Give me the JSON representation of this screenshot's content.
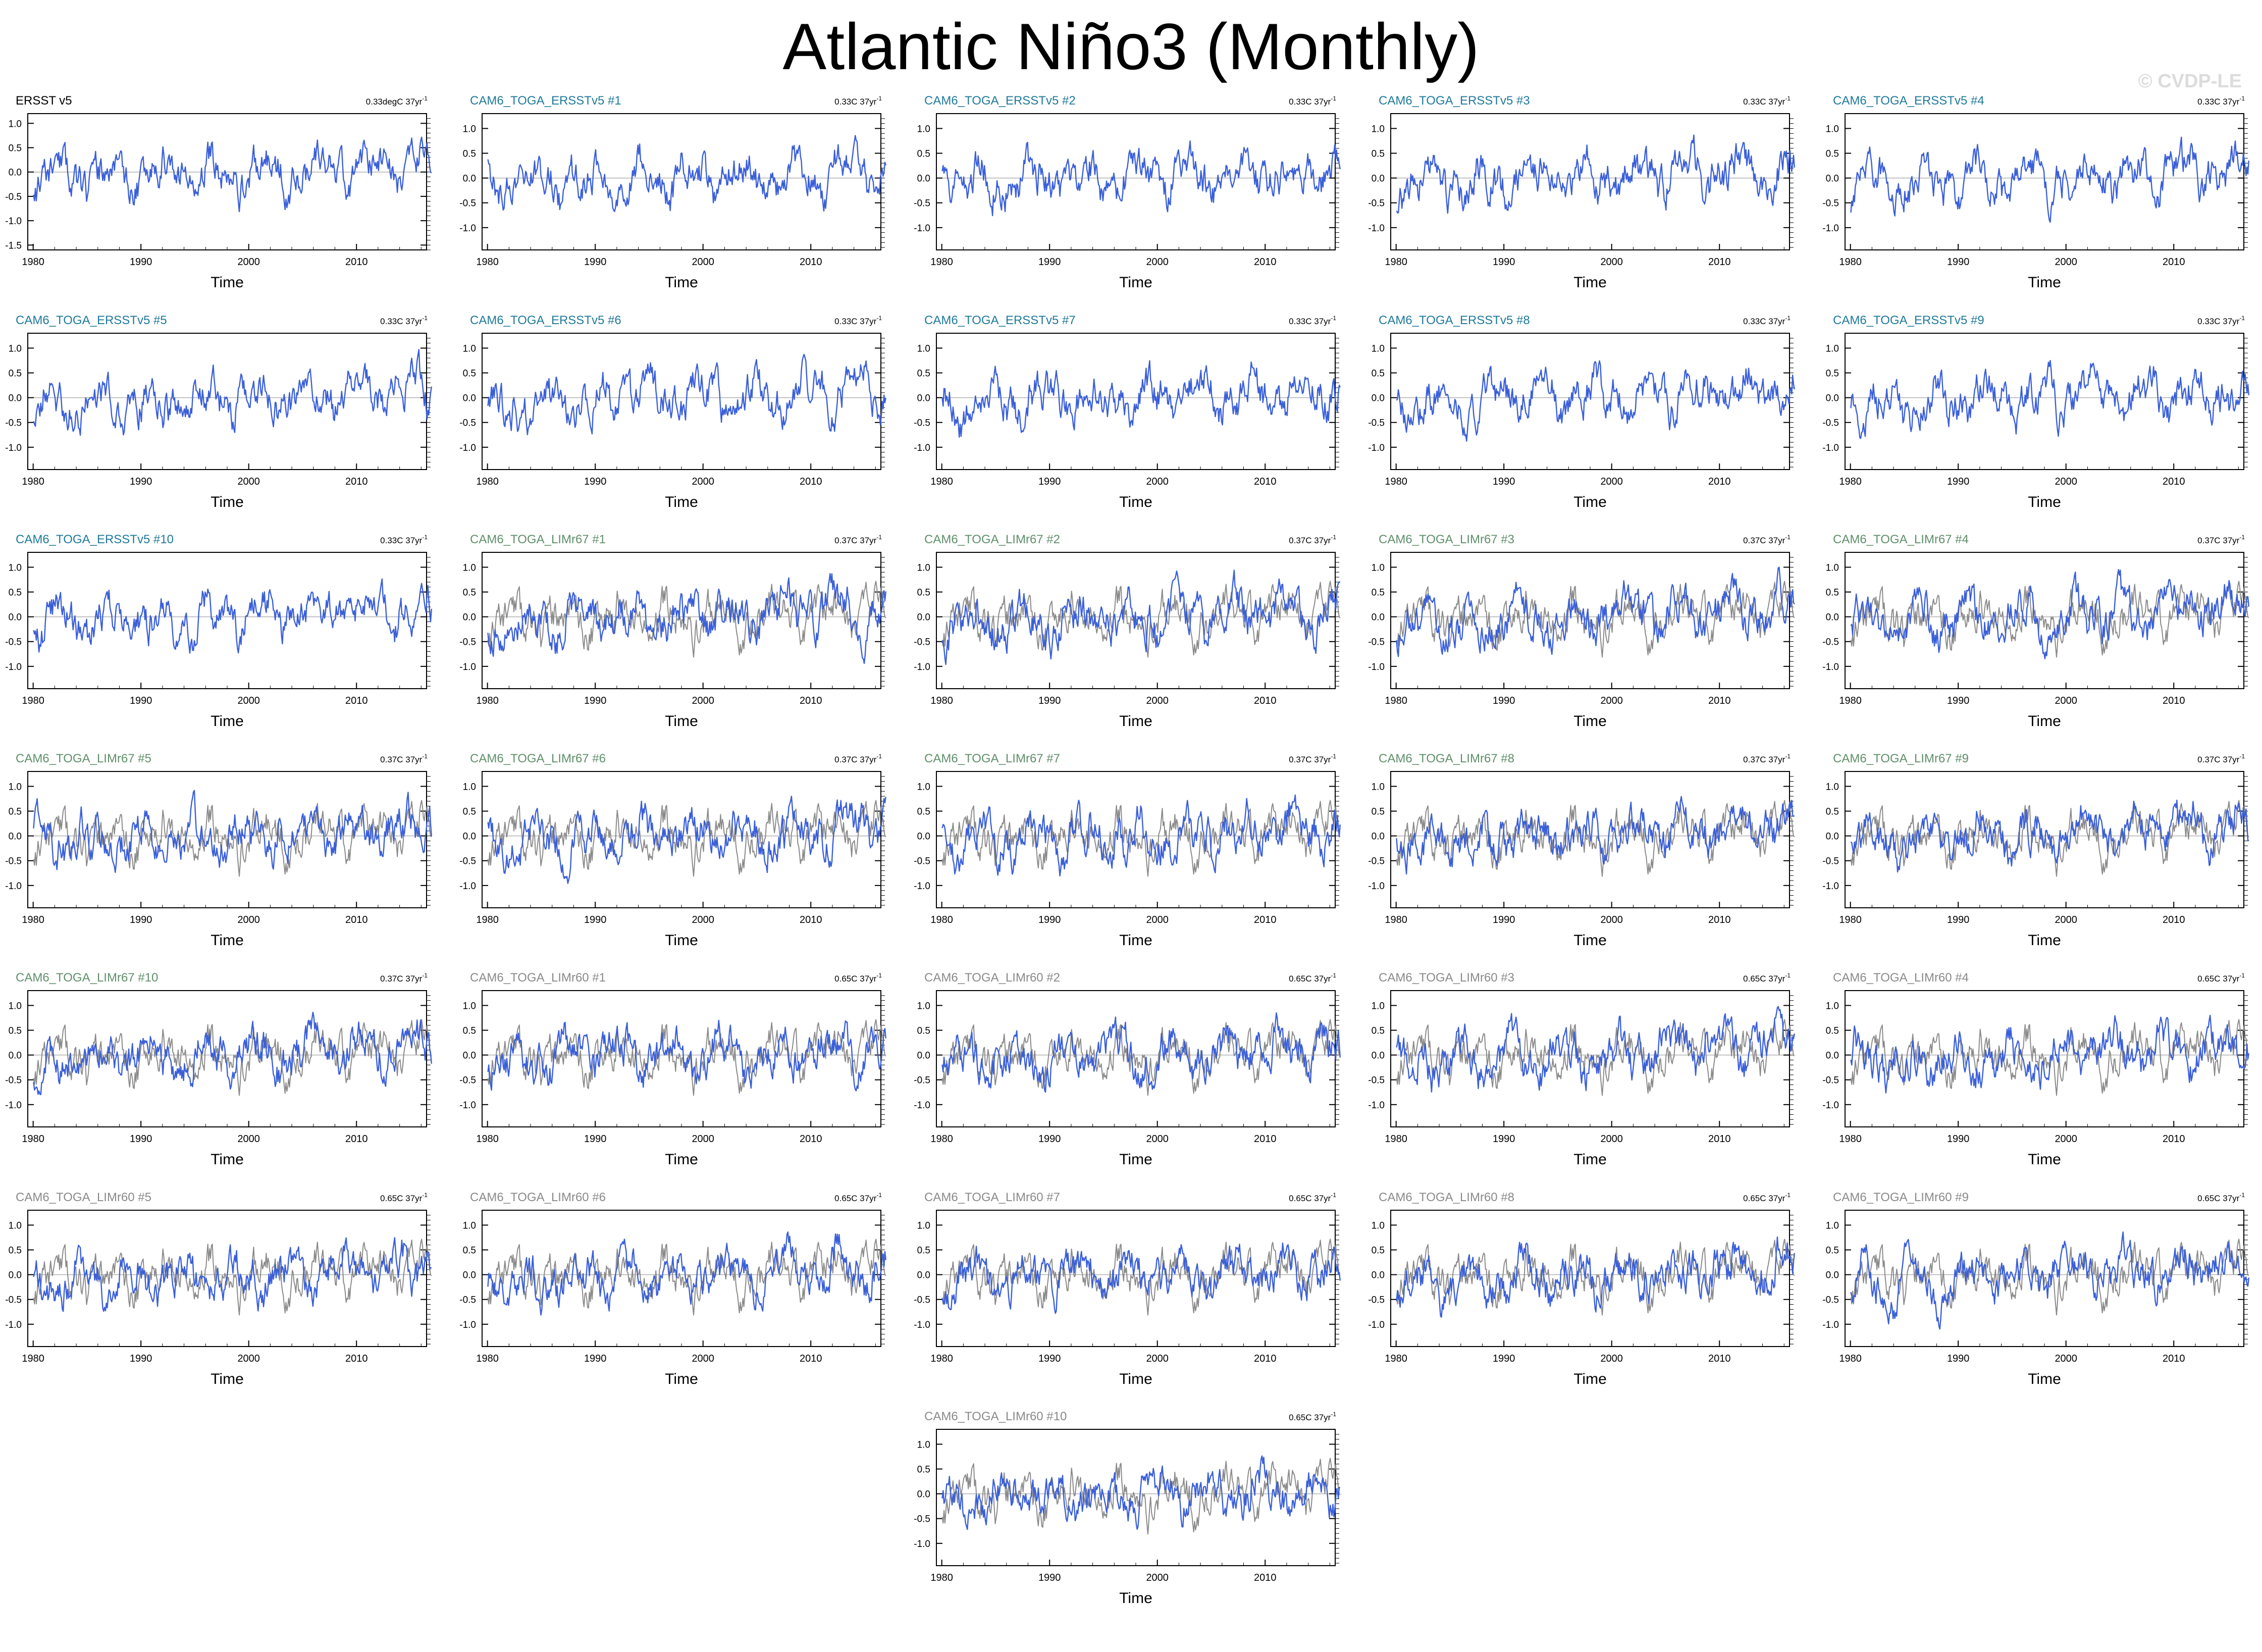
{
  "title": "Atlantic Niño3 (Monthly)",
  "watermark": "© CVDP-LE",
  "colors": {
    "ensemble_line": "#3a5fd9",
    "observation_line": "#8a8a8a",
    "title_ersst": "#000000",
    "title_toga_ersst": "#1f7a9a",
    "title_lim67": "#5f8f6a",
    "title_lim60": "#8a8a8a"
  },
  "chart_data": {
    "type": "line",
    "xlabel": "Time",
    "xlim": [
      1979.5,
      2016.5
    ],
    "xticks": [
      1980,
      1990,
      2000,
      2010
    ],
    "reference_line_y": 0,
    "panels": [
      {
        "name": "ERSST v5",
        "trend": "0.33degC 37yr",
        "trend_exponent": "-1",
        "group": "ersst",
        "ylim": [
          -1.6,
          1.2
        ],
        "yticks": [
          "1.0",
          "0.5",
          "0.0",
          "-0.5",
          "-1.0",
          "-1.5"
        ],
        "seed": 11,
        "overlay": false
      },
      {
        "name": "CAM6_TOGA_ERSSTv5 #1",
        "trend": "0.33C 37yr",
        "trend_exponent": "-1",
        "group": "toga_ersst",
        "ylim": [
          -1.45,
          1.3
        ],
        "yticks": [
          "1.0",
          "0.5",
          "0.0",
          "-0.5",
          "-1.0"
        ],
        "seed": 21,
        "overlay": false
      },
      {
        "name": "CAM6_TOGA_ERSSTv5 #2",
        "trend": "0.33C 37yr",
        "trend_exponent": "-1",
        "group": "toga_ersst",
        "ylim": [
          -1.45,
          1.3
        ],
        "yticks": [
          "1.0",
          "0.5",
          "0.0",
          "-0.5",
          "-1.0"
        ],
        "seed": 22,
        "overlay": false
      },
      {
        "name": "CAM6_TOGA_ERSSTv5 #3",
        "trend": "0.33C 37yr",
        "trend_exponent": "-1",
        "group": "toga_ersst",
        "ylim": [
          -1.45,
          1.3
        ],
        "yticks": [
          "1.0",
          "0.5",
          "0.0",
          "-0.5",
          "-1.0"
        ],
        "seed": 23,
        "overlay": false
      },
      {
        "name": "CAM6_TOGA_ERSSTv5 #4",
        "trend": "0.33C 37yr",
        "trend_exponent": "-1",
        "group": "toga_ersst",
        "ylim": [
          -1.45,
          1.3
        ],
        "yticks": [
          "1.0",
          "0.5",
          "0.0",
          "-0.5",
          "-1.0"
        ],
        "seed": 24,
        "overlay": false
      },
      {
        "name": "CAM6_TOGA_ERSSTv5 #5",
        "trend": "0.33C 37yr",
        "trend_exponent": "-1",
        "group": "toga_ersst",
        "ylim": [
          -1.45,
          1.3
        ],
        "yticks": [
          "1.0",
          "0.5",
          "0.0",
          "-0.5",
          "-1.0"
        ],
        "seed": 25,
        "overlay": false
      },
      {
        "name": "CAM6_TOGA_ERSSTv5 #6",
        "trend": "0.33C 37yr",
        "trend_exponent": "-1",
        "group": "toga_ersst",
        "ylim": [
          -1.45,
          1.3
        ],
        "yticks": [
          "1.0",
          "0.5",
          "0.0",
          "-0.5",
          "-1.0"
        ],
        "seed": 26,
        "overlay": false
      },
      {
        "name": "CAM6_TOGA_ERSSTv5 #7",
        "trend": "0.33C 37yr",
        "trend_exponent": "-1",
        "group": "toga_ersst",
        "ylim": [
          -1.45,
          1.3
        ],
        "yticks": [
          "1.0",
          "0.5",
          "0.0",
          "-0.5",
          "-1.0"
        ],
        "seed": 27,
        "overlay": false
      },
      {
        "name": "CAM6_TOGA_ERSSTv5 #8",
        "trend": "0.33C 37yr",
        "trend_exponent": "-1",
        "group": "toga_ersst",
        "ylim": [
          -1.45,
          1.3
        ],
        "yticks": [
          "1.0",
          "0.5",
          "0.0",
          "-0.5",
          "-1.0"
        ],
        "seed": 28,
        "overlay": false
      },
      {
        "name": "CAM6_TOGA_ERSSTv5 #9",
        "trend": "0.33C 37yr",
        "trend_exponent": "-1",
        "group": "toga_ersst",
        "ylim": [
          -1.45,
          1.3
        ],
        "yticks": [
          "1.0",
          "0.5",
          "0.0",
          "-0.5",
          "-1.0"
        ],
        "seed": 29,
        "overlay": false
      },
      {
        "name": "CAM6_TOGA_ERSSTv5 #10",
        "trend": "0.33C 37yr",
        "trend_exponent": "-1",
        "group": "toga_ersst",
        "ylim": [
          -1.45,
          1.3
        ],
        "yticks": [
          "1.0",
          "0.5",
          "0.0",
          "-0.5",
          "-1.0"
        ],
        "seed": 30,
        "overlay": false
      },
      {
        "name": "CAM6_TOGA_LIMr67 #1",
        "trend": "0.37C 37yr",
        "trend_exponent": "-1",
        "group": "lim67",
        "ylim": [
          -1.45,
          1.3
        ],
        "yticks": [
          "1.0",
          "0.5",
          "0.0",
          "-0.5",
          "-1.0"
        ],
        "seed": 41,
        "overlay": true
      },
      {
        "name": "CAM6_TOGA_LIMr67 #2",
        "trend": "0.37C 37yr",
        "trend_exponent": "-1",
        "group": "lim67",
        "ylim": [
          -1.45,
          1.3
        ],
        "yticks": [
          "1.0",
          "0.5",
          "0.0",
          "-0.5",
          "-1.0"
        ],
        "seed": 42,
        "overlay": true
      },
      {
        "name": "CAM6_TOGA_LIMr67 #3",
        "trend": "0.37C 37yr",
        "trend_exponent": "-1",
        "group": "lim67",
        "ylim": [
          -1.45,
          1.3
        ],
        "yticks": [
          "1.0",
          "0.5",
          "0.0",
          "-0.5",
          "-1.0"
        ],
        "seed": 43,
        "overlay": true
      },
      {
        "name": "CAM6_TOGA_LIMr67 #4",
        "trend": "0.37C 37yr",
        "trend_exponent": "-1",
        "group": "lim67",
        "ylim": [
          -1.45,
          1.3
        ],
        "yticks": [
          "1.0",
          "0.5",
          "0.0",
          "-0.5",
          "-1.0"
        ],
        "seed": 44,
        "overlay": true
      },
      {
        "name": "CAM6_TOGA_LIMr67 #5",
        "trend": "0.37C 37yr",
        "trend_exponent": "-1",
        "group": "lim67",
        "ylim": [
          -1.45,
          1.3
        ],
        "yticks": [
          "1.0",
          "0.5",
          "0.0",
          "-0.5",
          "-1.0"
        ],
        "seed": 45,
        "overlay": true
      },
      {
        "name": "CAM6_TOGA_LIMr67 #6",
        "trend": "0.37C 37yr",
        "trend_exponent": "-1",
        "group": "lim67",
        "ylim": [
          -1.45,
          1.3
        ],
        "yticks": [
          "1.0",
          "0.5",
          "0.0",
          "-0.5",
          "-1.0"
        ],
        "seed": 46,
        "overlay": true
      },
      {
        "name": "CAM6_TOGA_LIMr67 #7",
        "trend": "0.37C 37yr",
        "trend_exponent": "-1",
        "group": "lim67",
        "ylim": [
          -1.45,
          1.3
        ],
        "yticks": [
          "1.0",
          "0.5",
          "0.0",
          "-0.5",
          "-1.0"
        ],
        "seed": 47,
        "overlay": true
      },
      {
        "name": "CAM6_TOGA_LIMr67 #8",
        "trend": "0.37C 37yr",
        "trend_exponent": "-1",
        "group": "lim67",
        "ylim": [
          -1.45,
          1.3
        ],
        "yticks": [
          "1.0",
          "0.5",
          "0.0",
          "-0.5",
          "-1.0"
        ],
        "seed": 48,
        "overlay": true
      },
      {
        "name": "CAM6_TOGA_LIMr67 #9",
        "trend": "0.37C 37yr",
        "trend_exponent": "-1",
        "group": "lim67",
        "ylim": [
          -1.45,
          1.3
        ],
        "yticks": [
          "1.0",
          "0.5",
          "0.0",
          "-0.5",
          "-1.0"
        ],
        "seed": 49,
        "overlay": true
      },
      {
        "name": "CAM6_TOGA_LIMr67 #10",
        "trend": "0.37C 37yr",
        "trend_exponent": "-1",
        "group": "lim67",
        "ylim": [
          -1.45,
          1.3
        ],
        "yticks": [
          "1.0",
          "0.5",
          "0.0",
          "-0.5",
          "-1.0"
        ],
        "seed": 50,
        "overlay": true
      },
      {
        "name": "CAM6_TOGA_LIMr60 #1",
        "trend": "0.65C 37yr",
        "trend_exponent": "-1",
        "group": "lim60",
        "ylim": [
          -1.45,
          1.3
        ],
        "yticks": [
          "1.0",
          "0.5",
          "0.0",
          "-0.5",
          "-1.0"
        ],
        "seed": 61,
        "overlay": true
      },
      {
        "name": "CAM6_TOGA_LIMr60 #2",
        "trend": "0.65C 37yr",
        "trend_exponent": "-1",
        "group": "lim60",
        "ylim": [
          -1.45,
          1.3
        ],
        "yticks": [
          "1.0",
          "0.5",
          "0.0",
          "-0.5",
          "-1.0"
        ],
        "seed": 62,
        "overlay": true
      },
      {
        "name": "CAM6_TOGA_LIMr60 #3",
        "trend": "0.65C 37yr",
        "trend_exponent": "-1",
        "group": "lim60",
        "ylim": [
          -1.45,
          1.3
        ],
        "yticks": [
          "1.0",
          "0.5",
          "0.0",
          "-0.5",
          "-1.0"
        ],
        "seed": 63,
        "overlay": true
      },
      {
        "name": "CAM6_TOGA_LIMr60 #4",
        "trend": "0.65C 37yr",
        "trend_exponent": "-1",
        "group": "lim60",
        "ylim": [
          -1.45,
          1.3
        ],
        "yticks": [
          "1.0",
          "0.5",
          "0.0",
          "-0.5",
          "-1.0"
        ],
        "seed": 64,
        "overlay": true
      },
      {
        "name": "CAM6_TOGA_LIMr60 #5",
        "trend": "0.65C 37yr",
        "trend_exponent": "-1",
        "group": "lim60",
        "ylim": [
          -1.45,
          1.3
        ],
        "yticks": [
          "1.0",
          "0.5",
          "0.0",
          "-0.5",
          "-1.0"
        ],
        "seed": 65,
        "overlay": true
      },
      {
        "name": "CAM6_TOGA_LIMr60 #6",
        "trend": "0.65C 37yr",
        "trend_exponent": "-1",
        "group": "lim60",
        "ylim": [
          -1.45,
          1.3
        ],
        "yticks": [
          "1.0",
          "0.5",
          "0.0",
          "-0.5",
          "-1.0"
        ],
        "seed": 66,
        "overlay": true
      },
      {
        "name": "CAM6_TOGA_LIMr60 #7",
        "trend": "0.65C 37yr",
        "trend_exponent": "-1",
        "group": "lim60",
        "ylim": [
          -1.45,
          1.3
        ],
        "yticks": [
          "1.0",
          "0.5",
          "0.0",
          "-0.5",
          "-1.0"
        ],
        "seed": 67,
        "overlay": true
      },
      {
        "name": "CAM6_TOGA_LIMr60 #8",
        "trend": "0.65C 37yr",
        "trend_exponent": "-1",
        "group": "lim60",
        "ylim": [
          -1.45,
          1.3
        ],
        "yticks": [
          "1.0",
          "0.5",
          "0.0",
          "-0.5",
          "-1.0"
        ],
        "seed": 68,
        "overlay": true
      },
      {
        "name": "CAM6_TOGA_LIMr60 #9",
        "trend": "0.65C 37yr",
        "trend_exponent": "-1",
        "group": "lim60",
        "ylim": [
          -1.45,
          1.3
        ],
        "yticks": [
          "1.0",
          "0.5",
          "0.0",
          "-0.5",
          "-1.0"
        ],
        "seed": 69,
        "overlay": true
      },
      {
        "name": "CAM6_TOGA_LIMr60 #10",
        "trend": "0.65C 37yr",
        "trend_exponent": "-1",
        "group": "lim60",
        "ylim": [
          -1.45,
          1.3
        ],
        "yticks": [
          "1.0",
          "0.5",
          "0.0",
          "-0.5",
          "-1.0"
        ],
        "seed": 70,
        "overlay": true
      }
    ]
  }
}
